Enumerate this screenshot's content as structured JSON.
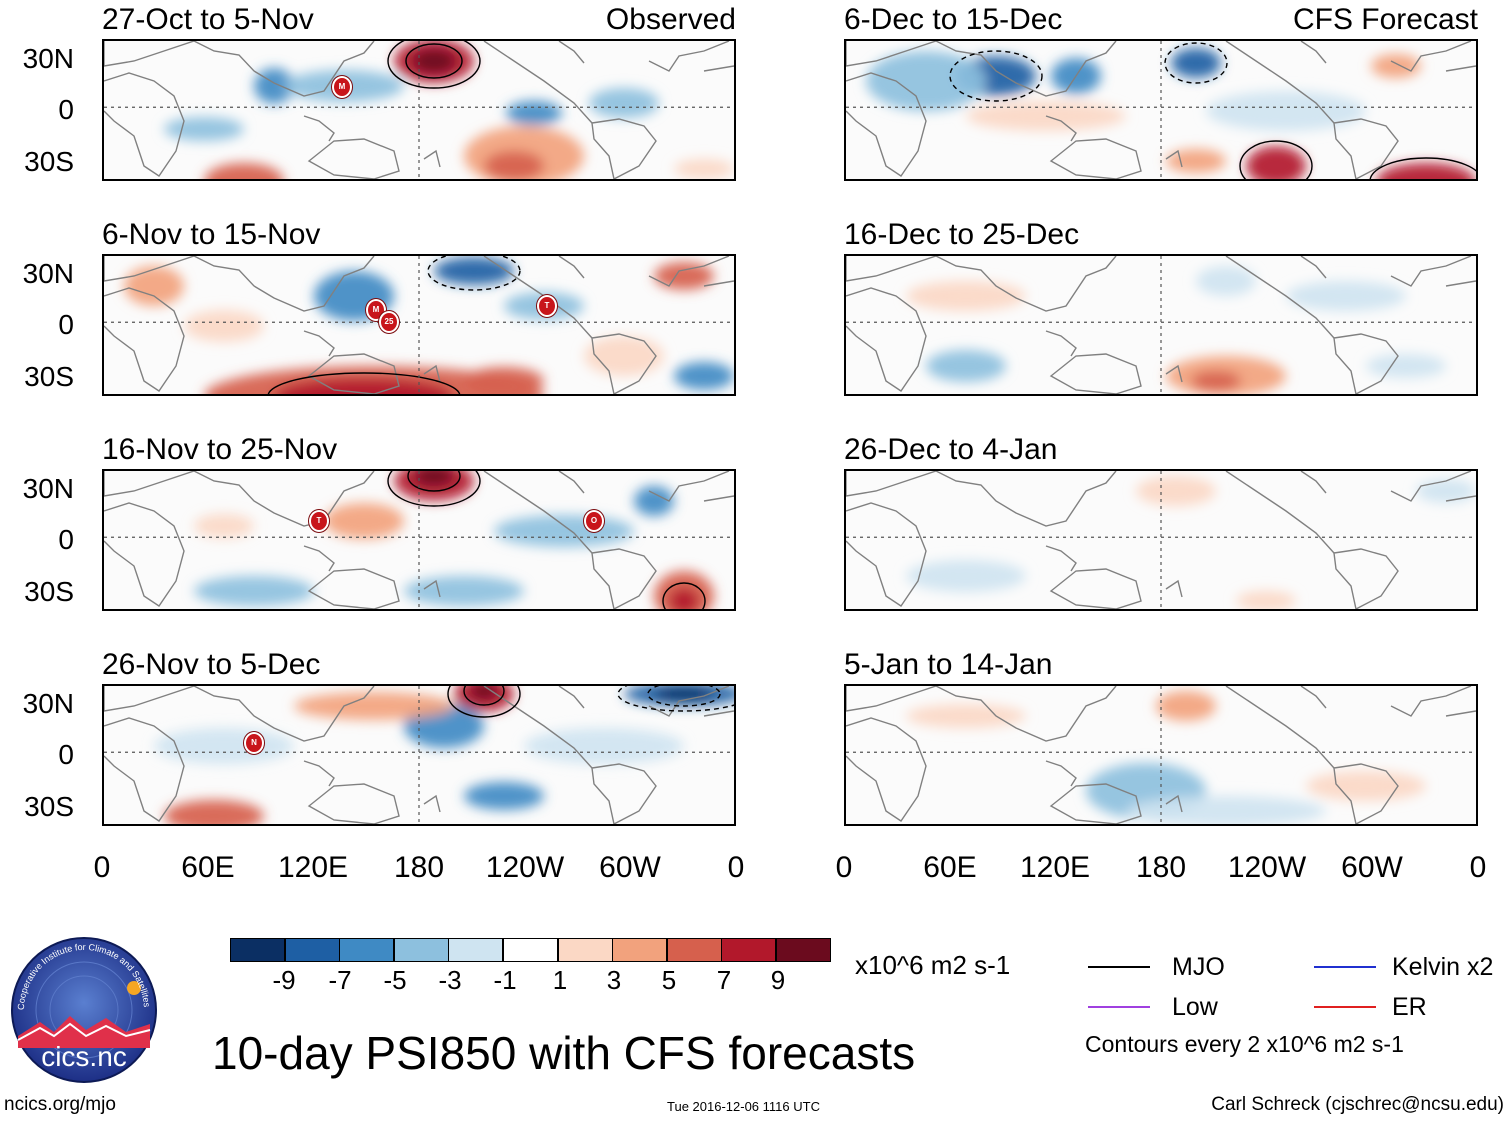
{
  "colors": {
    "scale": [
      "#0b2f63",
      "#1e5fa4",
      "#3f8ac4",
      "#8dc0de",
      "#cfe4f1",
      "#ffffff",
      "#fbd8c5",
      "#f2a27d",
      "#d6604d",
      "#b2182b",
      "#6b0b1e"
    ],
    "mjo": "#000000",
    "kelvin": "#2030d0",
    "low": "#a040e0",
    "er": "#e02020",
    "land": "#808080"
  },
  "panels": [
    {
      "id": "p1",
      "title": "27-Oct to 5-Nov",
      "tag": "Observed",
      "blobs": [
        {
          "x": 330,
          "y": 20,
          "rx": 40,
          "ry": 22,
          "c": 9
        },
        {
          "x": 330,
          "y": 20,
          "rx": 22,
          "ry": 12,
          "c": 10
        },
        {
          "x": 140,
          "y": 140,
          "rx": 40,
          "ry": 18,
          "c": 8
        },
        {
          "x": 420,
          "y": 115,
          "rx": 60,
          "ry": 30,
          "c": 7
        },
        {
          "x": 410,
          "y": 125,
          "rx": 30,
          "ry": 15,
          "c": 8
        },
        {
          "x": 170,
          "y": 45,
          "rx": 20,
          "ry": 18,
          "c": 2
        },
        {
          "x": 240,
          "y": 45,
          "rx": 60,
          "ry": 16,
          "c": 3
        },
        {
          "x": 430,
          "y": 72,
          "rx": 28,
          "ry": 12,
          "c": 2
        },
        {
          "x": 520,
          "y": 62,
          "rx": 35,
          "ry": 15,
          "c": 3
        },
        {
          "x": 100,
          "y": 88,
          "rx": 40,
          "ry": 12,
          "c": 3
        },
        {
          "x": 600,
          "y": 128,
          "rx": 30,
          "ry": 10,
          "c": 6
        }
      ]
    },
    {
      "id": "p2",
      "title": "6-Nov to 15-Nov",
      "tag": "",
      "blobs": [
        {
          "x": 270,
          "y": 140,
          "rx": 170,
          "ry": 30,
          "c": 8
        },
        {
          "x": 260,
          "y": 140,
          "rx": 90,
          "ry": 18,
          "c": 9
        },
        {
          "x": 400,
          "y": 125,
          "rx": 40,
          "ry": 14,
          "c": 8
        },
        {
          "x": 250,
          "y": 40,
          "rx": 40,
          "ry": 25,
          "c": 2
        },
        {
          "x": 370,
          "y": 15,
          "rx": 40,
          "ry": 14,
          "c": 1
        },
        {
          "x": 50,
          "y": 30,
          "rx": 30,
          "ry": 20,
          "c": 7
        },
        {
          "x": 580,
          "y": 20,
          "rx": 30,
          "ry": 14,
          "c": 8
        },
        {
          "x": 120,
          "y": 70,
          "rx": 40,
          "ry": 16,
          "c": 6
        },
        {
          "x": 600,
          "y": 120,
          "rx": 30,
          "ry": 14,
          "c": 2
        },
        {
          "x": 520,
          "y": 100,
          "rx": 40,
          "ry": 20,
          "c": 6
        },
        {
          "x": 440,
          "y": 50,
          "rx": 40,
          "ry": 14,
          "c": 3
        }
      ]
    },
    {
      "id": "p3",
      "title": "16-Nov to 25-Nov",
      "tag": "",
      "blobs": [
        {
          "x": 330,
          "y": 10,
          "rx": 40,
          "ry": 20,
          "c": 9
        },
        {
          "x": 330,
          "y": 5,
          "rx": 20,
          "ry": 10,
          "c": 10
        },
        {
          "x": 580,
          "y": 125,
          "rx": 30,
          "ry": 25,
          "c": 8
        },
        {
          "x": 580,
          "y": 130,
          "rx": 15,
          "ry": 13,
          "c": 9
        },
        {
          "x": 150,
          "y": 120,
          "rx": 60,
          "ry": 15,
          "c": 3
        },
        {
          "x": 360,
          "y": 120,
          "rx": 60,
          "ry": 15,
          "c": 3
        },
        {
          "x": 550,
          "y": 30,
          "rx": 20,
          "ry": 15,
          "c": 2
        },
        {
          "x": 460,
          "y": 60,
          "rx": 70,
          "ry": 16,
          "c": 3
        },
        {
          "x": 260,
          "y": 50,
          "rx": 40,
          "ry": 18,
          "c": 7
        },
        {
          "x": 120,
          "y": 55,
          "rx": 30,
          "ry": 12,
          "c": 6
        }
      ]
    },
    {
      "id": "p4",
      "title": "26-Nov to 5-Dec",
      "tag": "",
      "blobs": [
        {
          "x": 380,
          "y": 8,
          "rx": 30,
          "ry": 18,
          "c": 9
        },
        {
          "x": 380,
          "y": 5,
          "rx": 14,
          "ry": 9,
          "c": 10
        },
        {
          "x": 110,
          "y": 130,
          "rx": 50,
          "ry": 16,
          "c": 8
        },
        {
          "x": 580,
          "y": 8,
          "rx": 60,
          "ry": 12,
          "c": 1
        },
        {
          "x": 580,
          "y": 8,
          "rx": 30,
          "ry": 7,
          "c": 0
        },
        {
          "x": 340,
          "y": 40,
          "rx": 40,
          "ry": 22,
          "c": 2
        },
        {
          "x": 400,
          "y": 110,
          "rx": 40,
          "ry": 14,
          "c": 2
        },
        {
          "x": 270,
          "y": 20,
          "rx": 80,
          "ry": 14,
          "c": 7
        },
        {
          "x": 120,
          "y": 60,
          "rx": 70,
          "ry": 18,
          "c": 4
        },
        {
          "x": 500,
          "y": 60,
          "rx": 80,
          "ry": 18,
          "c": 4
        }
      ]
    },
    {
      "id": "p5",
      "title": "6-Dec to 15-Dec",
      "tag": "CFS Forecast",
      "blobs": [
        {
          "x": 150,
          "y": 35,
          "rx": 40,
          "ry": 20,
          "c": 1
        },
        {
          "x": 230,
          "y": 35,
          "rx": 25,
          "ry": 18,
          "c": 2
        },
        {
          "x": 350,
          "y": 22,
          "rx": 25,
          "ry": 15,
          "c": 1
        },
        {
          "x": 430,
          "y": 125,
          "rx": 30,
          "ry": 20,
          "c": 9
        },
        {
          "x": 580,
          "y": 140,
          "rx": 50,
          "ry": 18,
          "c": 9
        },
        {
          "x": 350,
          "y": 120,
          "rx": 30,
          "ry": 12,
          "c": 7
        },
        {
          "x": 550,
          "y": 25,
          "rx": 25,
          "ry": 12,
          "c": 7
        },
        {
          "x": 200,
          "y": 75,
          "rx": 80,
          "ry": 15,
          "c": 6
        },
        {
          "x": 80,
          "y": 40,
          "rx": 60,
          "ry": 30,
          "c": 3
        },
        {
          "x": 440,
          "y": 70,
          "rx": 80,
          "ry": 20,
          "c": 4
        }
      ]
    },
    {
      "id": "p6",
      "title": "16-Dec to 25-Dec",
      "tag": "",
      "blobs": [
        {
          "x": 380,
          "y": 120,
          "rx": 60,
          "ry": 20,
          "c": 7
        },
        {
          "x": 370,
          "y": 125,
          "rx": 25,
          "ry": 10,
          "c": 8
        },
        {
          "x": 380,
          "y": 25,
          "rx": 30,
          "ry": 15,
          "c": 4
        },
        {
          "x": 120,
          "y": 110,
          "rx": 40,
          "ry": 16,
          "c": 3
        },
        {
          "x": 120,
          "y": 40,
          "rx": 60,
          "ry": 15,
          "c": 6
        },
        {
          "x": 500,
          "y": 40,
          "rx": 60,
          "ry": 15,
          "c": 4
        },
        {
          "x": 560,
          "y": 110,
          "rx": 40,
          "ry": 12,
          "c": 4
        }
      ]
    },
    {
      "id": "p7",
      "title": "26-Dec to 4-Jan",
      "tag": "",
      "blobs": [
        {
          "x": 330,
          "y": 20,
          "rx": 40,
          "ry": 15,
          "c": 6
        },
        {
          "x": 420,
          "y": 130,
          "rx": 30,
          "ry": 10,
          "c": 6
        },
        {
          "x": 120,
          "y": 105,
          "rx": 60,
          "ry": 16,
          "c": 4
        },
        {
          "x": 600,
          "y": 20,
          "rx": 30,
          "ry": 12,
          "c": 4
        }
      ]
    },
    {
      "id": "p8",
      "title": "5-Jan to 14-Jan",
      "tag": "",
      "blobs": [
        {
          "x": 340,
          "y": 20,
          "rx": 30,
          "ry": 15,
          "c": 7
        },
        {
          "x": 300,
          "y": 105,
          "rx": 60,
          "ry": 28,
          "c": 3
        },
        {
          "x": 380,
          "y": 125,
          "rx": 100,
          "ry": 15,
          "c": 4
        },
        {
          "x": 120,
          "y": 30,
          "rx": 60,
          "ry": 12,
          "c": 6
        },
        {
          "x": 520,
          "y": 100,
          "rx": 60,
          "ry": 15,
          "c": 6
        }
      ]
    }
  ],
  "y_labels": [
    "30N",
    "0",
    "30S"
  ],
  "x_labels": [
    "0",
    "60E",
    "120E",
    "180",
    "120W",
    "60W",
    "0"
  ],
  "colorbar": {
    "labels": [
      "-9",
      "-7",
      "-5",
      "-3",
      "-1",
      "1",
      "3",
      "5",
      "7",
      "9"
    ],
    "units": "x10^6 m2 s-1"
  },
  "legend": {
    "mjo": "MJO",
    "kelvin": "Kelvin x2",
    "low": "Low",
    "er": "ER",
    "note": "Contours every 2 x10^6 m2 s-1"
  },
  "title": "10-day PSI850 with CFS forecasts",
  "footer": {
    "left": "ncics.org/mjo",
    "center": "Tue 2016-12-06 1116 UTC",
    "right": "Carl Schreck (cjschrec@ncsu.edu)"
  },
  "logo": {
    "text": "cics.nc",
    "ring": "Cooperative Institute for Climate and Satellites"
  },
  "storms": [
    {
      "panel": "p1",
      "label": "M"
    },
    {
      "panel": "p2",
      "label": "M"
    },
    {
      "panel": "p2",
      "label": "25"
    },
    {
      "panel": "p2",
      "label": "T"
    },
    {
      "panel": "p3",
      "label": "T"
    },
    {
      "panel": "p3",
      "label": "O"
    },
    {
      "panel": "p4",
      "label": "N"
    }
  ]
}
